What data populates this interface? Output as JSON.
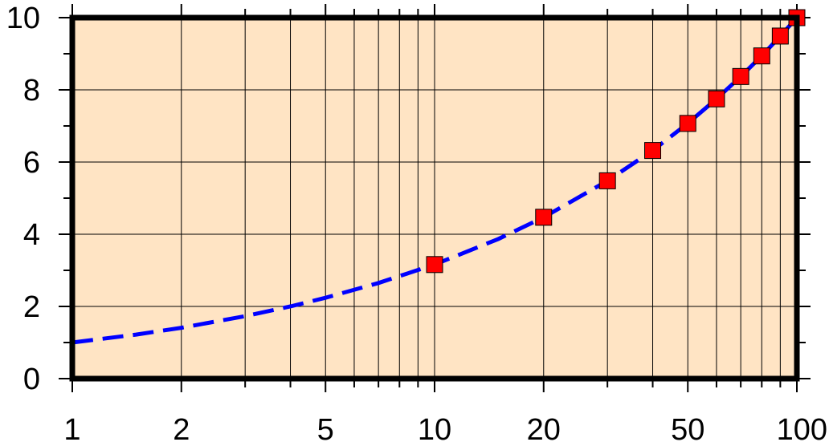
{
  "chart_data": {
    "type": "scatter",
    "x_scale": "log",
    "xlim": [
      1,
      100
    ],
    "ylim": [
      0,
      10
    ],
    "x_ticks": [
      "1",
      "2",
      "5",
      "10",
      "20",
      "50",
      "100"
    ],
    "y_ticks": [
      "0",
      "2",
      "4",
      "6",
      "8",
      "10"
    ],
    "grid": true,
    "series": [
      {
        "type": "line",
        "style": "dashed",
        "color": "#0000ff",
        "x": [
          1,
          1.5,
          2,
          3,
          4,
          5,
          7,
          10,
          15,
          20,
          30,
          40,
          50,
          60,
          70,
          80,
          90,
          100
        ],
        "y": [
          1.0,
          1.22,
          1.41,
          1.73,
          2.0,
          2.24,
          2.65,
          3.16,
          3.87,
          4.47,
          5.48,
          6.32,
          7.07,
          7.75,
          8.37,
          8.94,
          9.49,
          10.0
        ]
      },
      {
        "type": "scatter",
        "marker": "square",
        "color": "#ff0000",
        "x": [
          10,
          20,
          30,
          40,
          50,
          60,
          70,
          80,
          90,
          100
        ],
        "y": [
          3.16,
          4.47,
          5.48,
          6.32,
          7.07,
          7.75,
          8.37,
          8.94,
          9.49,
          10.0
        ]
      }
    ]
  },
  "colors": {
    "plot_background": "#ffe4c4",
    "frame": "#000000",
    "grid": "#000000"
  }
}
